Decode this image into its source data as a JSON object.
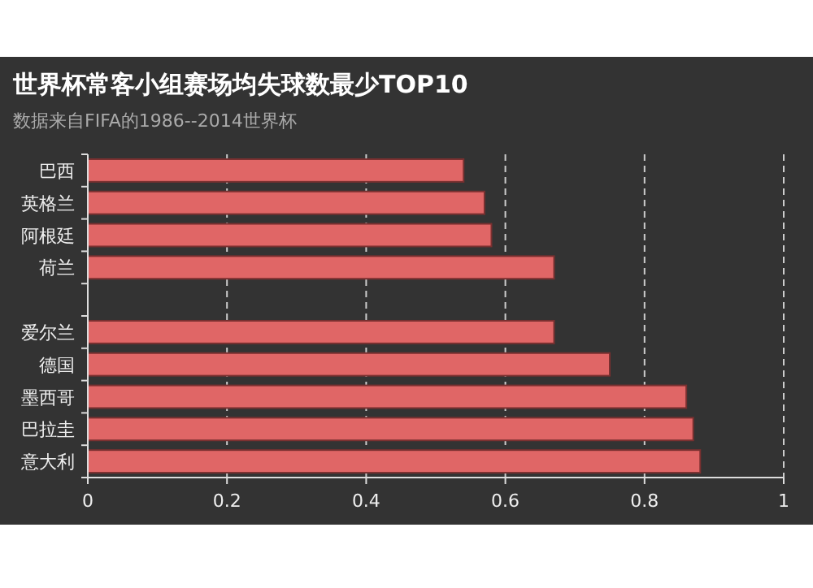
{
  "chart_data": {
    "type": "bar",
    "orientation": "horizontal",
    "title": "世界杯常客小组赛场均失球数最少TOP10",
    "subtitle": "数据来自FIFA的1986--2014世界杯",
    "categories": [
      "巴西",
      "英格兰",
      "阿根廷",
      "荷兰",
      null,
      "爱尔兰",
      "德国",
      "墨西哥",
      "巴拉圭",
      "意大利"
    ],
    "values": [
      0.54,
      0.57,
      0.58,
      0.67,
      null,
      0.67,
      0.75,
      0.86,
      0.87,
      0.88
    ],
    "color": "#e06666",
    "xlim": [
      0,
      1
    ],
    "xticks": [
      0,
      0.2,
      0.4,
      0.6,
      0.8,
      1
    ],
    "grid": "x"
  }
}
